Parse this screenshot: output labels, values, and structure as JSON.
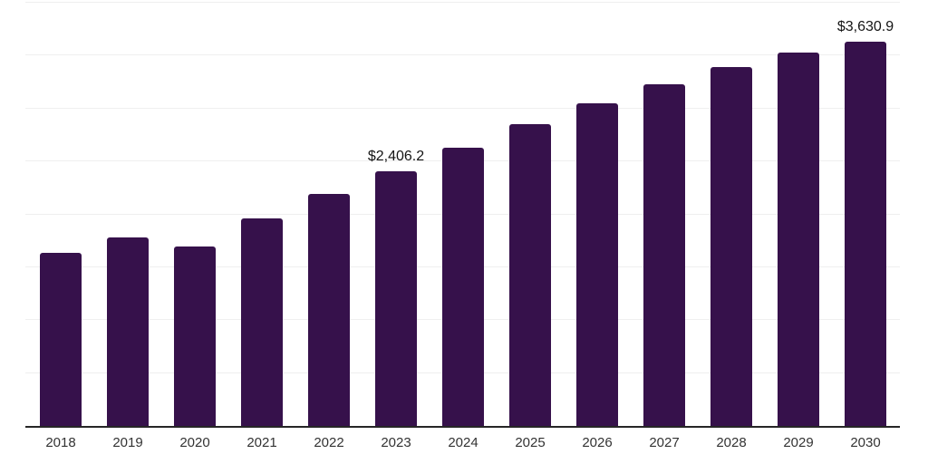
{
  "chart_data": {
    "type": "bar",
    "title": "",
    "xlabel": "",
    "ylabel": "",
    "categories": [
      "2018",
      "2019",
      "2020",
      "2021",
      "2022",
      "2023",
      "2024",
      "2025",
      "2026",
      "2027",
      "2028",
      "2029",
      "2030"
    ],
    "values": [
      1640,
      1780,
      1700,
      1960,
      2190,
      2406.2,
      2630,
      2850,
      3050,
      3230,
      3390,
      3530,
      3630.9
    ],
    "point_labels": [
      "",
      "",
      "",
      "",
      "",
      "$2,406.2",
      "",
      "",
      "",
      "",
      "",
      "",
      "$3,630.9"
    ],
    "ylim": [
      0,
      4000
    ],
    "grid_step": 500,
    "grid": true,
    "legend": false,
    "y_axis_tick_labels_visible": false
  },
  "colors": {
    "bar": "#36114B",
    "gridline": "#EFEFEF",
    "axis_line": "#262626",
    "tick_label": "#333333",
    "data_label": "#141414",
    "background": "#FFFFFF"
  }
}
